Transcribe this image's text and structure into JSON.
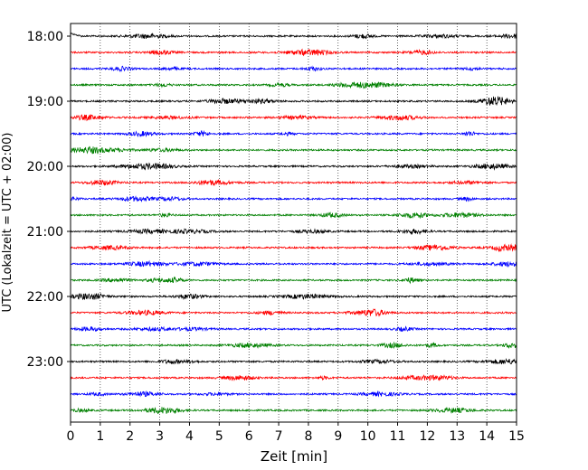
{
  "chart_data": {
    "type": "line",
    "title": "",
    "xlabel": "Zeit  [min]",
    "ylabel": "UTC (Lokalzeit = UTC + 02:00)",
    "xlim": [
      0,
      15
    ],
    "x_ticks": [
      "0",
      "1",
      "2",
      "3",
      "4",
      "5",
      "6",
      "7",
      "8",
      "9",
      "10",
      "11",
      "12",
      "13",
      "14",
      "15"
    ],
    "y_ticks": [
      "18:00",
      "19:00",
      "20:00",
      "21:00",
      "22:00",
      "23:00"
    ],
    "y_tick_rows": [
      0,
      4,
      8,
      12,
      16,
      20
    ],
    "grid": "vertical dotted",
    "trace_interval_min": 15,
    "trace_count": 24,
    "trace_colors": [
      "#000000",
      "#ff0000",
      "#0000ff",
      "#008000"
    ]
  }
}
